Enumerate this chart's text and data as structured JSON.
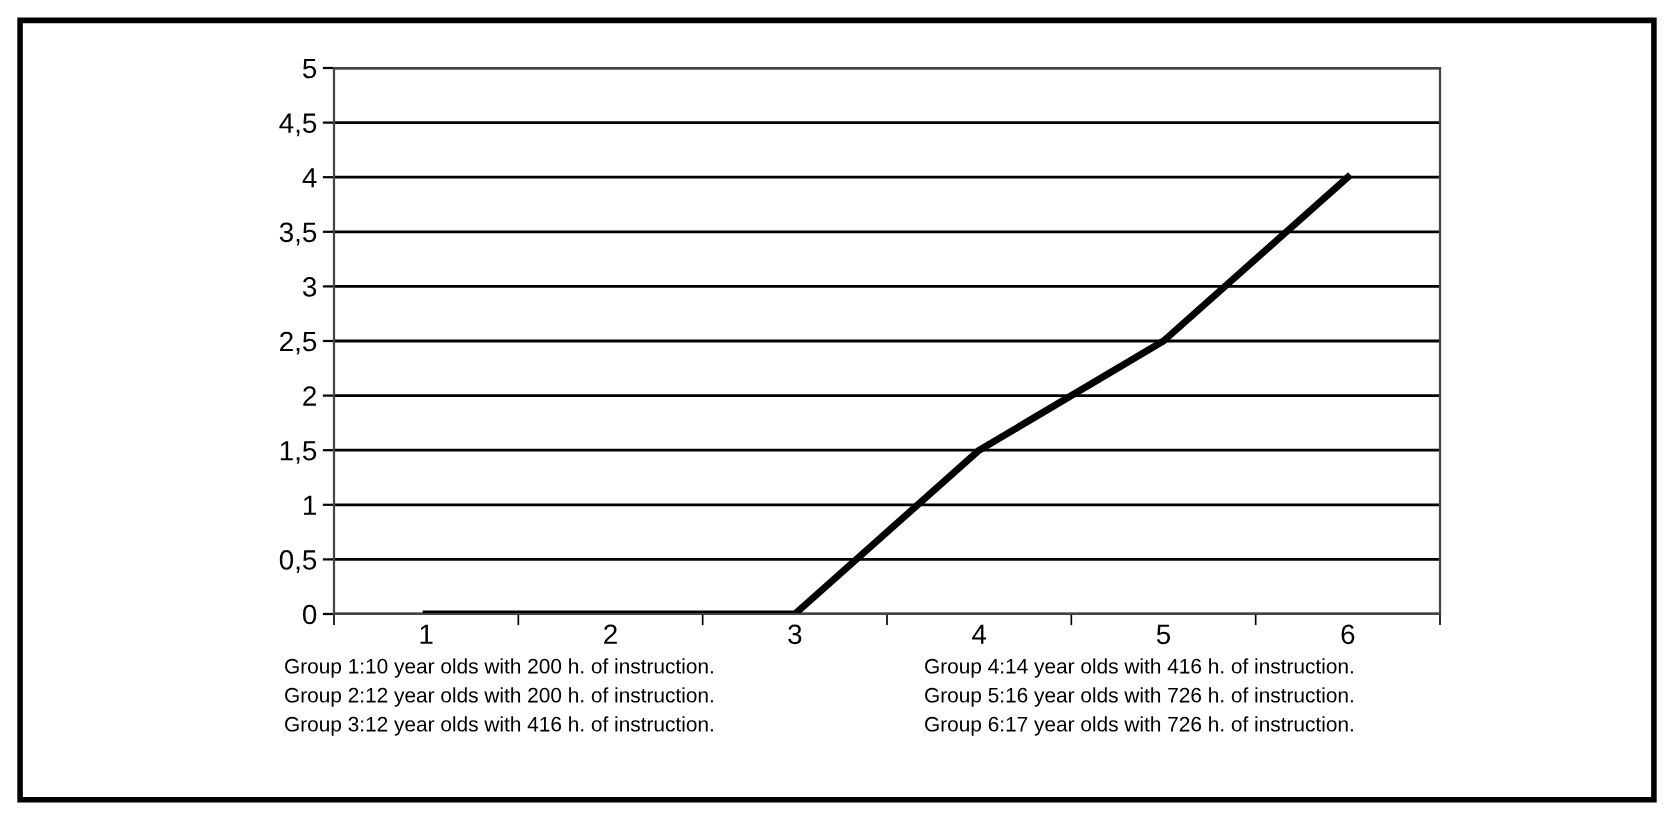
{
  "chart_data": {
    "type": "line",
    "categories": [
      "1",
      "2",
      "3",
      "4",
      "5",
      "6"
    ],
    "series": [
      {
        "color": "#000000",
        "values": [
          0,
          0,
          0,
          1.5,
          2.5,
          4
        ]
      }
    ],
    "ylim": [
      0,
      5
    ],
    "yticks": [
      0,
      {
        "value": 0.5,
        "label": "0,5"
      },
      1,
      {
        "value": 1.5,
        "label": "1,5"
      },
      2,
      {
        "value": 2.5,
        "label": "2,5"
      },
      3,
      {
        "value": 3.5,
        "label": "3,5"
      },
      4,
      {
        "value": 4.5,
        "label": "4,5"
      },
      5
    ],
    "grid": "y",
    "marker": "none",
    "line_style": "solid",
    "annotations": [
      "Group 1:10 year olds with 200 h. of instruction.",
      "Group 2:12 year olds with 200 h. of instruction.",
      "Group 3:12 year olds with 416 h. of instruction.",
      "Group 4:14 year olds with 416 h. of instruction.",
      "Group 5:16 year olds with 726 h. of instruction.",
      "Group 6:17 year olds with 726 h. of instruction."
    ]
  }
}
